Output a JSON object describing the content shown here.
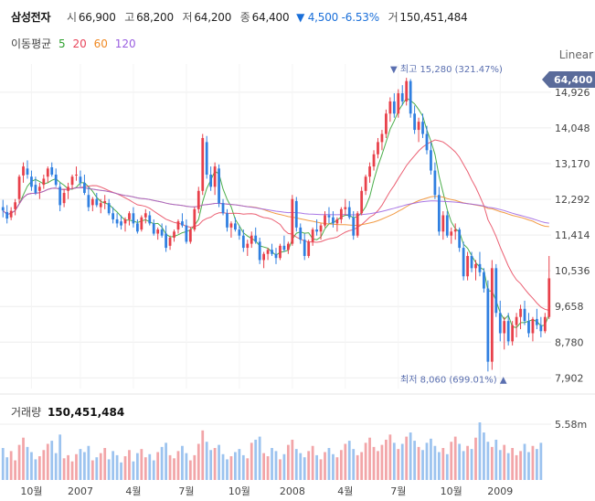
{
  "header": {
    "name": "삼성전자",
    "open_label": "시",
    "open": "66,900",
    "high_label": "고",
    "high": "68,200",
    "low_label": "저",
    "low": "64,200",
    "close_label": "종",
    "close": "64,400",
    "change": "▼ 4,500 -6.53%",
    "volume_label": "거",
    "volume": "150,451,484"
  },
  "ma_legend": {
    "title": "이동평균",
    "periods": [
      {
        "label": "5",
        "color": "#2ca02c"
      },
      {
        "label": "20",
        "color": "#e8445a"
      },
      {
        "label": "60",
        "color": "#f08a24"
      },
      {
        "label": "120",
        "color": "#9a5fe0"
      }
    ]
  },
  "scale_label": "Linear",
  "current_price_tag": "64,400",
  "annotations": {
    "high": "▼ 최고 15,280 (321.47%)",
    "low": "최저 8,060 (699.01%) ▲"
  },
  "volume_panel": {
    "title": "거래량",
    "value": "150,451,484",
    "axis_label": "5.58m"
  },
  "colors": {
    "up": "#e8404a",
    "down": "#2f7fe0",
    "vol_up": "#f2a5a8",
    "vol_down": "#9cc3ef",
    "tag": "#5a6b9a"
  },
  "chart_data": {
    "type": "candlestick",
    "title": "삼성전자",
    "y_ticks": [
      "14,926",
      "14,048",
      "13,170",
      "12,292",
      "11,414",
      "10,536",
      "9,658",
      "8,780",
      "7,902"
    ],
    "y_tick_values": [
      14926,
      14048,
      13170,
      12292,
      11414,
      10536,
      9658,
      8780,
      7902
    ],
    "ylim": [
      7640,
      15620
    ],
    "x_ticks": [
      "10월",
      "2007",
      "4월",
      "7월",
      "10월",
      "2008",
      "4월",
      "7월",
      "10월",
      "2009"
    ],
    "x_tick_index": [
      7,
      19,
      32,
      45,
      58,
      71,
      84,
      97,
      110,
      122
    ],
    "ohlc": [
      [
        12100,
        12280,
        11850,
        12020
      ],
      [
        11980,
        12150,
        11700,
        11820
      ],
      [
        11850,
        12100,
        11780,
        12010
      ],
      [
        12050,
        12300,
        11900,
        12220
      ],
      [
        12300,
        12900,
        12200,
        12850
      ],
      [
        12880,
        13200,
        12700,
        13100
      ],
      [
        13050,
        13250,
        12800,
        12900
      ],
      [
        12850,
        13000,
        12500,
        12600
      ],
      [
        12650,
        12850,
        12400,
        12450
      ],
      [
        12500,
        12700,
        12300,
        12600
      ],
      [
        12650,
        12900,
        12550,
        12800
      ],
      [
        12850,
        13100,
        12700,
        13050
      ],
      [
        13080,
        13200,
        12850,
        12900
      ],
      [
        12900,
        13050,
        12600,
        12650
      ],
      [
        12600,
        12700,
        12000,
        12150
      ],
      [
        12200,
        12550,
        12100,
        12450
      ],
      [
        12500,
        12700,
        12300,
        12600
      ],
      [
        12650,
        12900,
        12550,
        12850
      ],
      [
        12900,
        13100,
        12750,
        12900
      ],
      [
        12850,
        13000,
        12600,
        12700
      ],
      [
        12700,
        12900,
        12400,
        12450
      ],
      [
        12400,
        12600,
        12000,
        12100
      ],
      [
        12150,
        12350,
        12000,
        12300
      ],
      [
        12300,
        12450,
        12100,
        12150
      ],
      [
        12100,
        12300,
        11950,
        12200
      ],
      [
        12200,
        12400,
        12050,
        12250
      ],
      [
        12200,
        12300,
        11900,
        11950
      ],
      [
        11950,
        12100,
        11700,
        11800
      ],
      [
        11800,
        11950,
        11600,
        11700
      ],
      [
        11750,
        11900,
        11550,
        11650
      ],
      [
        11700,
        11850,
        11500,
        11800
      ],
      [
        11800,
        12000,
        11650,
        11950
      ],
      [
        11950,
        12100,
        11600,
        11700
      ],
      [
        11700,
        11800,
        11450,
        11500
      ],
      [
        11550,
        11900,
        11500,
        11850
      ],
      [
        11850,
        12050,
        11700,
        11950
      ],
      [
        11900,
        12000,
        11650,
        11700
      ],
      [
        11700,
        11800,
        11400,
        11450
      ],
      [
        11450,
        11600,
        11300,
        11550
      ],
      [
        11550,
        11700,
        11350,
        11400
      ],
      [
        11450,
        11650,
        11000,
        11100
      ],
      [
        11150,
        11400,
        11050,
        11350
      ],
      [
        11350,
        11550,
        11250,
        11500
      ],
      [
        11550,
        11800,
        11450,
        11750
      ],
      [
        11750,
        11950,
        11600,
        11650
      ],
      [
        11650,
        11800,
        11200,
        11250
      ],
      [
        11250,
        11600,
        11200,
        11550
      ],
      [
        11550,
        12100,
        11500,
        12050
      ],
      [
        12050,
        12600,
        11950,
        12500
      ],
      [
        12500,
        13900,
        12400,
        13800
      ],
      [
        13700,
        13850,
        12800,
        12900
      ],
      [
        12900,
        13100,
        12500,
        12600
      ],
      [
        12600,
        13200,
        12400,
        13100
      ],
      [
        13050,
        13150,
        12100,
        12200
      ],
      [
        12200,
        12300,
        11900,
        11950
      ],
      [
        11950,
        12050,
        11500,
        11600
      ],
      [
        11600,
        11750,
        11350,
        11700
      ],
      [
        11700,
        11850,
        11500,
        11550
      ],
      [
        11550,
        11650,
        11300,
        11400
      ],
      [
        11400,
        11550,
        11000,
        11100
      ],
      [
        11100,
        11300,
        10900,
        11200
      ],
      [
        11200,
        11500,
        11100,
        11400
      ],
      [
        11400,
        11600,
        11200,
        11250
      ],
      [
        11250,
        11350,
        10700,
        10800
      ],
      [
        10800,
        11000,
        10600,
        10950
      ],
      [
        10950,
        11100,
        10800,
        11050
      ],
      [
        11050,
        11200,
        10900,
        10950
      ],
      [
        10950,
        11100,
        10700,
        10850
      ],
      [
        10850,
        11200,
        10800,
        11150
      ],
      [
        11150,
        11400,
        11000,
        11050
      ],
      [
        11050,
        11250,
        10950,
        11200
      ],
      [
        11200,
        12400,
        11150,
        12300
      ],
      [
        12250,
        12350,
        11500,
        11600
      ],
      [
        11600,
        11700,
        11200,
        11300
      ],
      [
        11300,
        11450,
        10800,
        10900
      ],
      [
        10900,
        11300,
        10850,
        11250
      ],
      [
        11250,
        11600,
        11150,
        11550
      ],
      [
        11550,
        11800,
        11400,
        11500
      ],
      [
        11500,
        11700,
        11300,
        11650
      ],
      [
        11650,
        12000,
        11600,
        11900
      ],
      [
        11900,
        12100,
        11700,
        11850
      ],
      [
        11850,
        12000,
        11600,
        11700
      ],
      [
        11700,
        11850,
        11500,
        11800
      ],
      [
        11800,
        12100,
        11700,
        12050
      ],
      [
        12050,
        12300,
        11900,
        12100
      ],
      [
        12100,
        12250,
        11800,
        11850
      ],
      [
        11850,
        12000,
        11300,
        11400
      ],
      [
        11400,
        12000,
        11350,
        11950
      ],
      [
        11950,
        12600,
        11900,
        12500
      ],
      [
        12500,
        12900,
        12400,
        12850
      ],
      [
        12850,
        13200,
        12700,
        13100
      ],
      [
        13100,
        13500,
        13000,
        13400
      ],
      [
        13400,
        13800,
        13300,
        13700
      ],
      [
        13700,
        14000,
        13500,
        13900
      ],
      [
        13900,
        14500,
        13800,
        14400
      ],
      [
        14400,
        14800,
        14200,
        14700
      ],
      [
        14700,
        14900,
        14300,
        14400
      ],
      [
        14400,
        15000,
        14300,
        14900
      ],
      [
        14900,
        15100,
        14600,
        14700
      ],
      [
        14700,
        15280,
        14600,
        15200
      ],
      [
        15200,
        15250,
        14300,
        14400
      ],
      [
        14400,
        14600,
        13900,
        14000
      ],
      [
        14000,
        14300,
        13700,
        14200
      ],
      [
        14200,
        14400,
        13800,
        13900
      ],
      [
        13900,
        14100,
        13400,
        13500
      ],
      [
        13500,
        13700,
        12900,
        13000
      ],
      [
        13000,
        13200,
        12300,
        12400
      ],
      [
        12400,
        12600,
        11400,
        11500
      ],
      [
        11500,
        12000,
        11300,
        11900
      ],
      [
        11900,
        12000,
        11350,
        11400
      ],
      [
        11400,
        11600,
        11200,
        11500
      ],
      [
        11500,
        11700,
        11300,
        11550
      ],
      [
        11550,
        11600,
        11000,
        11100
      ],
      [
        11100,
        11250,
        10300,
        10400
      ],
      [
        10400,
        11000,
        10300,
        10900
      ],
      [
        10900,
        11000,
        10500,
        10600
      ],
      [
        10600,
        10800,
        10300,
        10700
      ],
      [
        10700,
        11000,
        10400,
        10500
      ],
      [
        10500,
        10600,
        10000,
        10100
      ],
      [
        10100,
        10300,
        8060,
        8300
      ],
      [
        8300,
        10800,
        8100,
        10600
      ],
      [
        10600,
        10700,
        9400,
        9500
      ],
      [
        9500,
        9800,
        8800,
        9000
      ],
      [
        9000,
        9400,
        8600,
        9300
      ],
      [
        9300,
        9500,
        8700,
        8800
      ],
      [
        8800,
        9300,
        8700,
        9200
      ],
      [
        9200,
        9500,
        8900,
        9400
      ],
      [
        9400,
        9700,
        9100,
        9600
      ],
      [
        9600,
        9800,
        9200,
        9300
      ],
      [
        9300,
        9500,
        8900,
        9000
      ],
      [
        9000,
        9400,
        8800,
        9350
      ],
      [
        9350,
        9600,
        9100,
        9200
      ],
      [
        9200,
        9400,
        8900,
        9050
      ],
      [
        9050,
        9500,
        9000,
        9400
      ],
      [
        9400,
        10900,
        9350,
        10350
      ]
    ],
    "volume": [
      3.1,
      2.2,
      2.8,
      1.9,
      3.4,
      4.1,
      3.2,
      2.7,
      2.0,
      2.3,
      2.9,
      3.5,
      3.8,
      2.6,
      4.4,
      2.1,
      2.4,
      1.8,
      2.5,
      3.0,
      2.7,
      3.3,
      1.9,
      2.2,
      2.6,
      3.1,
      2.0,
      2.8,
      2.4,
      1.7,
      2.3,
      2.9,
      1.8,
      2.6,
      3.0,
      2.2,
      2.5,
      1.9,
      2.7,
      3.2,
      3.6,
      2.4,
      2.1,
      2.8,
      3.3,
      2.6,
      1.9,
      2.4,
      3.5,
      4.8,
      3.7,
      2.9,
      3.1,
      3.4,
      2.5,
      2.0,
      2.3,
      2.7,
      3.0,
      2.4,
      2.1,
      3.6,
      3.9,
      4.2,
      2.6,
      2.3,
      3.1,
      2.8,
      2.0,
      2.5,
      3.4,
      3.9,
      3.0,
      2.6,
      2.2,
      2.8,
      3.3,
      2.4,
      2.0,
      2.7,
      3.1,
      2.5,
      2.2,
      2.9,
      3.5,
      3.8,
      3.0,
      2.4,
      2.7,
      3.6,
      4.1,
      3.2,
      2.8,
      3.4,
      3.9,
      4.4,
      3.6,
      3.0,
      3.5,
      4.2,
      4.6,
      3.8,
      3.2,
      2.9,
      3.6,
      4.0,
      3.3,
      2.7,
      3.1,
      2.5,
      3.7,
      4.2,
      3.5,
      2.8,
      3.3,
      3.0,
      4.1,
      5.58,
      4.6,
      3.7,
      3.2,
      3.9,
      2.9,
      3.4,
      2.6,
      3.1,
      2.4,
      2.8,
      3.5,
      2.7,
      3.3,
      3.0,
      3.6
    ],
    "volume_unit": "m",
    "volume_max": 5.58
  }
}
